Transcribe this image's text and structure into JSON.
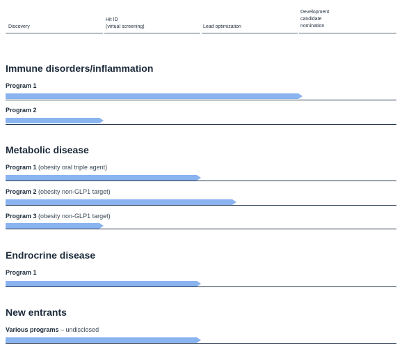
{
  "stages": [
    "Discovery",
    "Hit ID\n(virtual screening)",
    "Lead optimization",
    "Development\ncandidate\nnomination"
  ],
  "sections": [
    {
      "title": "Immune disorders/inflammation",
      "programs": [
        {
          "name": "Program 1",
          "desc": "",
          "progress": 0.76
        },
        {
          "name": "Program 2",
          "desc": "",
          "progress": 0.25
        }
      ]
    },
    {
      "title": "Metabolic disease",
      "programs": [
        {
          "name": "Program 1",
          "desc": " (obesity oral triple agent)",
          "progress": 0.5
        },
        {
          "name": "Program 2",
          "desc": " (obesity non-GLP1 target)",
          "progress": 0.59
        },
        {
          "name": "Program 3",
          "desc": " (obesity non-GLP1 target)",
          "progress": 0.25
        }
      ]
    },
    {
      "title": "Endrocrine disease",
      "programs": [
        {
          "name": "Program 1",
          "desc": "",
          "progress": 0.5
        }
      ]
    },
    {
      "title": "New entrants",
      "programs": [
        {
          "name": "Various programs",
          "desc": " – undisclosed",
          "progress": 0.5
        }
      ]
    }
  ]
}
